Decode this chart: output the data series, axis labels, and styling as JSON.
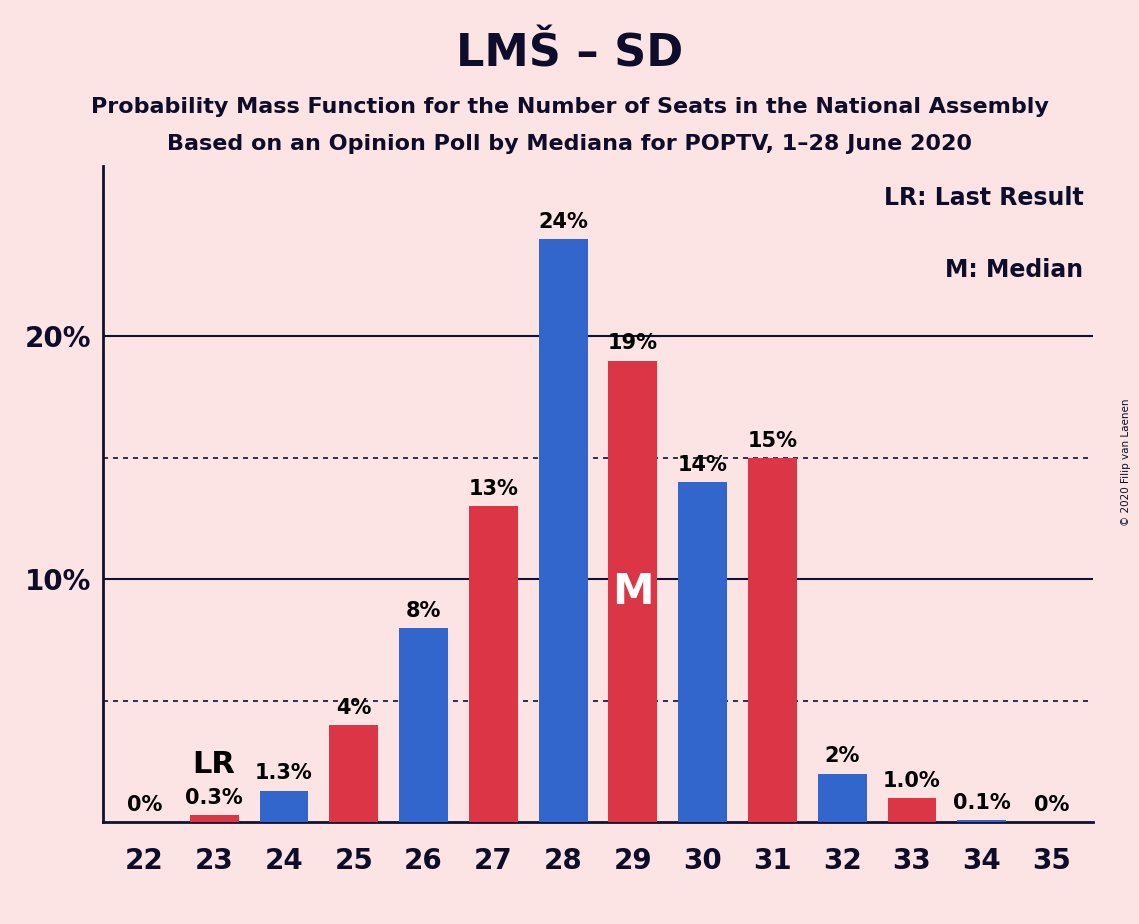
{
  "title": "LMŠ – SD",
  "subtitle1": "Probability Mass Function for the Number of Seats in the National Assembly",
  "subtitle2": "Based on an Opinion Poll by Mediana for POPTV, 1–28 June 2020",
  "copyright": "© 2020 Filip van Laenen",
  "background_color": "#fce4e4",
  "seats": [
    22,
    23,
    24,
    25,
    26,
    27,
    28,
    29,
    30,
    31,
    32,
    33,
    34,
    35
  ],
  "bar_values": [
    0.0,
    0.3,
    1.3,
    4.0,
    8.0,
    13.0,
    24.0,
    19.0,
    14.0,
    15.0,
    2.0,
    1.0,
    0.1,
    0.0
  ],
  "bar_colors": [
    "#3366cc",
    "#dc3545",
    "#3366cc",
    "#dc3545",
    "#3366cc",
    "#dc3545",
    "#3366cc",
    "#dc3545",
    "#3366cc",
    "#dc3545",
    "#3366cc",
    "#dc3545",
    "#3366cc",
    "#dc3545"
  ],
  "bar_labels": [
    "0%",
    "0.3%",
    "1.3%",
    "4%",
    "8%",
    "13%",
    "24%",
    "19%",
    "14%",
    "15%",
    "2%",
    "1.0%",
    "0.1%",
    "0%"
  ],
  "label_colors": [
    "black",
    "black",
    "black",
    "black",
    "black",
    "black",
    "black",
    "black",
    "black",
    "black",
    "black",
    "black",
    "black",
    "black"
  ],
  "blue_color": "#3366cc",
  "red_color": "#dc3545",
  "lr_seat_idx": 1,
  "median_seat_idx": 7,
  "lr_label": "LR",
  "median_label": "M",
  "legend_lr": "LR: Last Result",
  "legend_m": "M: Median",
  "ytick_positions": [
    10,
    20
  ],
  "ytick_labels": [
    "10%",
    "20%"
  ],
  "solid_gridlines": [
    10,
    20
  ],
  "dotted_gridlines": [
    5,
    15
  ],
  "title_fontsize": 32,
  "subtitle_fontsize": 16,
  "axis_label_fontsize": 20,
  "bar_label_fontsize": 15,
  "special_label_fontsize": 22,
  "legend_fontsize": 17,
  "ymax": 27
}
